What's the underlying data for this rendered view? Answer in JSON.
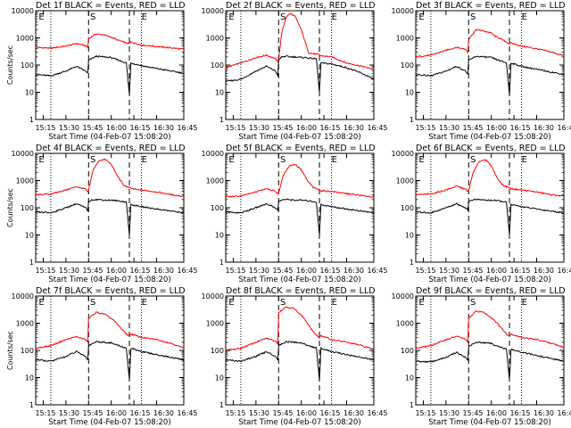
{
  "layout": {
    "rows": 3,
    "cols": 3
  },
  "shared": {
    "xlabel": "Start Time (04-Feb-07 15:08:20)",
    "ylabel": "Counts/sec",
    "yscale": "log",
    "ylim": [
      1,
      10000
    ],
    "ytick_labels": [
      "1",
      "10",
      "100",
      "1000",
      "10000"
    ],
    "xlim": [
      10.0,
      108.0
    ],
    "xtick_positions": [
      0,
      15,
      30,
      45,
      60,
      75,
      90
    ],
    "xtick_labels": [
      "15:15",
      "15:30",
      "15:45",
      "16:00",
      "16:15",
      "16:30",
      "16:45"
    ],
    "dotted_lines_x": [
      20,
      80
    ],
    "dashed_lines_x": [
      45,
      72
    ],
    "flag_labels": [
      {
        "text": "E",
        "x": 12
      },
      {
        "text": "S",
        "x": 46
      },
      {
        "text": "E",
        "x": 80
      }
    ],
    "colors": {
      "events": "#000000",
      "lld": "#ff0000"
    }
  },
  "chart_data": [
    {
      "type": "line",
      "title": "Det 1f BLACK = Events, RED = LLD",
      "x": [
        10,
        20,
        30,
        37,
        43,
        44.5,
        45,
        50,
        55,
        60,
        62,
        65,
        70,
        72,
        73,
        80,
        90,
        100,
        108
      ],
      "series": [
        {
          "name": "RED = LLD",
          "values": [
            450,
            420,
            500,
            620,
            520,
            440,
            950,
            1400,
            1300,
            1050,
            950,
            800,
            650,
            600,
            700,
            550,
            480,
            430,
            380
          ]
        },
        {
          "name": "BLACK = Events",
          "values": [
            45,
            40,
            60,
            90,
            60,
            50,
            150,
            210,
            200,
            190,
            170,
            150,
            120,
            8,
            120,
            95,
            75,
            60,
            50
          ]
        }
      ]
    },
    {
      "type": "line",
      "title": "Det 2f BLACK = Events, RED = LLD",
      "x": [
        10,
        20,
        30,
        37,
        43,
        44.5,
        45,
        47,
        50,
        53,
        56,
        60,
        63,
        65,
        70,
        72,
        73,
        80,
        90,
        100,
        108
      ],
      "series": [
        {
          "name": "RED = LLD",
          "values": [
            80,
            120,
            190,
            230,
            170,
            130,
            150,
            1500,
            6000,
            8000,
            6000,
            2000,
            600,
            280,
            250,
            240,
            220,
            200,
            120,
            90,
            70
          ]
        },
        {
          "name": "BLACK = Events",
          "values": [
            25,
            30,
            60,
            90,
            60,
            40,
            150,
            200,
            210,
            200,
            200,
            190,
            190,
            180,
            170,
            10,
            120,
            110,
            80,
            50,
            30
          ]
        }
      ]
    },
    {
      "type": "line",
      "title": "Det 3f BLACK = Events, RED = LLD",
      "x": [
        10,
        20,
        30,
        37,
        43,
        44.5,
        45,
        50,
        55,
        60,
        62,
        65,
        70,
        72,
        73,
        80,
        90,
        100,
        108
      ],
      "series": [
        {
          "name": "RED = LLD",
          "values": [
            200,
            230,
            350,
            450,
            380,
            300,
            900,
            2000,
            1800,
            1500,
            1200,
            1000,
            700,
            600,
            650,
            500,
            400,
            300,
            220
          ]
        },
        {
          "name": "BLACK = Events",
          "values": [
            45,
            40,
            60,
            90,
            60,
            45,
            150,
            210,
            200,
            190,
            170,
            150,
            120,
            8,
            120,
            90,
            70,
            55,
            45
          ]
        }
      ]
    },
    {
      "type": "line",
      "title": "Det 4f BLACK = Events, RED = LLD",
      "x": [
        10,
        20,
        30,
        37,
        43,
        44.5,
        45,
        48,
        52,
        56,
        60,
        64,
        68,
        70,
        72,
        73,
        80,
        90,
        100,
        108
      ],
      "series": [
        {
          "name": "RED = LLD",
          "values": [
            300,
            320,
            450,
            600,
            480,
            380,
            420,
            2500,
            5500,
            6000,
            4000,
            1500,
            700,
            600,
            550,
            500,
            450,
            380,
            300,
            260
          ]
        },
        {
          "name": "BLACK = Events",
          "values": [
            70,
            65,
            100,
            140,
            100,
            80,
            170,
            200,
            200,
            190,
            190,
            180,
            170,
            160,
            10,
            130,
            110,
            90,
            75,
            65
          ]
        }
      ]
    },
    {
      "type": "line",
      "title": "Det 5f BLACK = Events, RED = LLD",
      "x": [
        10,
        20,
        30,
        37,
        43,
        44.5,
        45,
        48,
        52,
        56,
        60,
        64,
        68,
        70,
        72,
        73,
        80,
        90,
        100,
        108
      ],
      "series": [
        {
          "name": "RED = LLD",
          "values": [
            250,
            270,
            380,
            520,
            400,
            320,
            350,
            1500,
            3500,
            4000,
            2500,
            1000,
            550,
            500,
            450,
            420,
            400,
            330,
            280,
            250
          ]
        },
        {
          "name": "BLACK = Events",
          "values": [
            70,
            65,
            100,
            140,
            100,
            80,
            170,
            200,
            200,
            190,
            190,
            180,
            170,
            160,
            10,
            130,
            110,
            90,
            75,
            65
          ]
        }
      ]
    },
    {
      "type": "line",
      "title": "Det 6f BLACK = Events, RED = LLD",
      "x": [
        10,
        20,
        30,
        37,
        43,
        44.5,
        45,
        48,
        52,
        56,
        60,
        64,
        68,
        70,
        72,
        73,
        80,
        90,
        100,
        108
      ],
      "series": [
        {
          "name": "RED = LLD",
          "values": [
            300,
            320,
            450,
            620,
            480,
            380,
            420,
            2000,
            5000,
            6000,
            3500,
            1200,
            650,
            600,
            550,
            500,
            450,
            380,
            300,
            260
          ]
        },
        {
          "name": "BLACK = Events",
          "values": [
            70,
            65,
            100,
            140,
            100,
            80,
            170,
            200,
            200,
            190,
            190,
            180,
            170,
            160,
            10,
            130,
            110,
            90,
            75,
            65
          ]
        }
      ]
    },
    {
      "type": "line",
      "title": "Det 7f BLACK = Events, RED = LLD",
      "x": [
        10,
        20,
        30,
        37,
        43,
        44.5,
        45,
        50,
        55,
        60,
        62,
        65,
        70,
        72,
        73,
        80,
        90,
        100,
        108
      ],
      "series": [
        {
          "name": "RED = LLD",
          "values": [
            120,
            150,
            250,
            320,
            250,
            200,
            1500,
            2500,
            2200,
            1500,
            1200,
            800,
            400,
            350,
            400,
            300,
            250,
            180,
            120
          ]
        },
        {
          "name": "BLACK = Events",
          "values": [
            45,
            40,
            60,
            90,
            60,
            45,
            150,
            210,
            200,
            190,
            170,
            150,
            120,
            8,
            120,
            90,
            70,
            55,
            45
          ]
        }
      ]
    },
    {
      "type": "line",
      "title": "Det 8f BLACK = Events, RED = LLD",
      "x": [
        10,
        20,
        30,
        37,
        43,
        44.5,
        45,
        50,
        55,
        60,
        62,
        65,
        70,
        72,
        73,
        80,
        90,
        100,
        108
      ],
      "series": [
        {
          "name": "RED = LLD",
          "values": [
            100,
            120,
            200,
            280,
            220,
            180,
            2500,
            4000,
            3500,
            2000,
            1500,
            800,
            350,
            300,
            350,
            250,
            200,
            150,
            110
          ]
        },
        {
          "name": "BLACK = Events",
          "values": [
            45,
            40,
            60,
            90,
            60,
            45,
            150,
            210,
            200,
            190,
            170,
            150,
            120,
            8,
            120,
            90,
            70,
            55,
            45
          ]
        }
      ]
    },
    {
      "type": "line",
      "title": "Det 9f BLACK = Events, RED = LLD",
      "x": [
        10,
        20,
        30,
        37,
        43,
        44.5,
        45,
        50,
        55,
        60,
        62,
        65,
        70,
        72,
        73,
        80,
        90,
        100,
        108
      ],
      "series": [
        {
          "name": "RED = LLD",
          "values": [
            120,
            150,
            250,
            330,
            260,
            200,
            1500,
            2800,
            2500,
            1600,
            1300,
            850,
            400,
            350,
            400,
            300,
            250,
            180,
            130
          ]
        },
        {
          "name": "BLACK = Events",
          "values": [
            40,
            38,
            55,
            85,
            55,
            42,
            140,
            200,
            190,
            180,
            160,
            140,
            110,
            8,
            110,
            85,
            65,
            50,
            40
          ]
        }
      ]
    }
  ]
}
